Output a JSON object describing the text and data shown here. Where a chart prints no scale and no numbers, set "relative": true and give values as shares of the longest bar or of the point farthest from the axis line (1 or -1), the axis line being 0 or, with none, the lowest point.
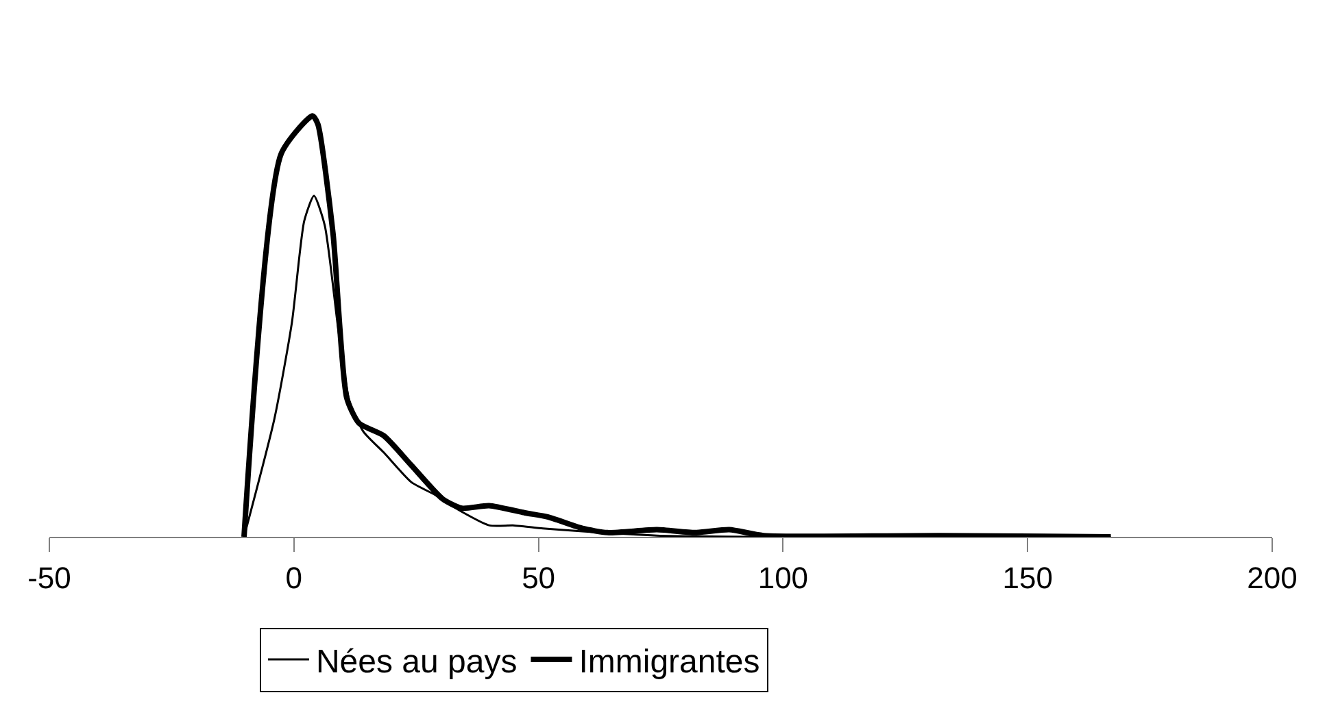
{
  "chart_data": {
    "type": "line",
    "relative": true,
    "xlim": [
      -50,
      200
    ],
    "xticks": [
      -50,
      0,
      50,
      100,
      150,
      200
    ],
    "legend": "bottom",
    "marker": "none",
    "line_style": "solid",
    "series": [
      {
        "name": "Nées au pays",
        "color": "#000000",
        "x": [
          -10.2,
          -4.0,
          -0.4,
          2.1,
          4.1,
          6.3,
          9.1,
          11.4,
          14.2,
          18.4,
          24.0,
          28.8,
          34.1,
          40.0,
          45.0,
          50.9,
          59.0,
          74.2,
          96,
          167
        ],
        "values": [
          0,
          0.28,
          0.51,
          0.75,
          0.81,
          0.74,
          0.49,
          0.32,
          0.25,
          0.2,
          0.13,
          0.1,
          0.061,
          0.027,
          0.027,
          0.02,
          0.013,
          0.003,
          0,
          0
        ]
      },
      {
        "name": "Immigrantes",
        "color": "#000000",
        "x": [
          -10.2,
          -2.6,
          3.8,
          4.9,
          8.0,
          10.8,
          13.3,
          18.4,
          24.0,
          30.4,
          34.3,
          39.9,
          47.2,
          52.0,
          59.0,
          64.1,
          74.2,
          82,
          89,
          96,
          132,
          167
        ],
        "values": [
          0,
          0.91,
          1.0,
          0.98,
          0.72,
          0.33,
          0.27,
          0.24,
          0.17,
          0.09,
          0.068,
          0.074,
          0.057,
          0.047,
          0.02,
          0.01,
          0.017,
          0.01,
          0.017,
          0.003,
          0.003,
          0
        ]
      }
    ]
  }
}
